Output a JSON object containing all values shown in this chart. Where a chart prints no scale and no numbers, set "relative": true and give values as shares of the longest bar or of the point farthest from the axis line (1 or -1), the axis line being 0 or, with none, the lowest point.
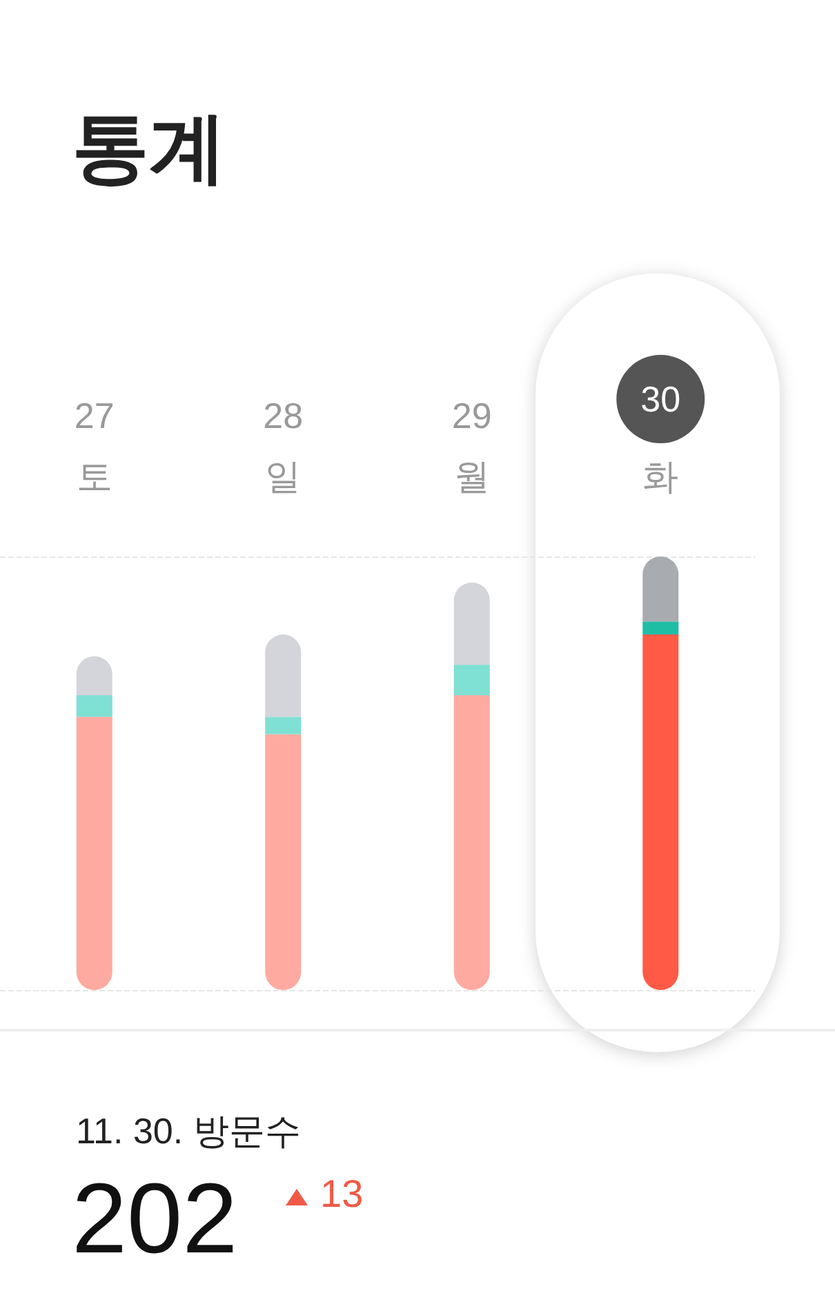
{
  "chart_data": {
    "type": "bar",
    "title": "통계",
    "stacked": true,
    "relative": true,
    "grid": "y",
    "categories": [
      "27\n토",
      "28\n일",
      "29\n월",
      "30\n화"
    ],
    "series": [
      {
        "colors": [
          "#ffaaa0",
          "#ffaaa0",
          "#ffaaa0",
          "#ff5a46"
        ],
        "values": [
          0.63,
          0.59,
          0.68,
          0.82
        ]
      },
      {
        "colors": [
          "#7fe0d4",
          "#7fe0d4",
          "#7fe0d4",
          "#1ebea5"
        ],
        "values": [
          0.05,
          0.04,
          0.07,
          0.03
        ]
      },
      {
        "colors": [
          "#d4d5da",
          "#d4d5da",
          "#d4d5da",
          "#a8abb0"
        ],
        "values": [
          0.09,
          0.19,
          0.19,
          0.15
        ]
      }
    ],
    "annotations": [
      "11. 30. 방문수",
      "202",
      "13"
    ]
  }
}
